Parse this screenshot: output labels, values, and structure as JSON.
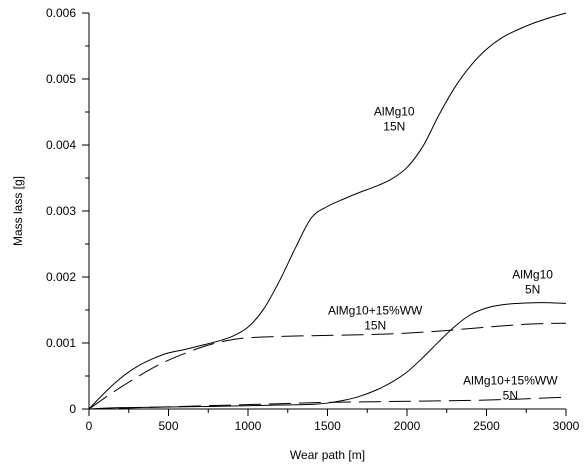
{
  "chart_data": {
    "type": "line",
    "title": "",
    "xlabel": "Wear path [m]",
    "ylabel": "Mass lass [g]",
    "xlim": [
      0,
      3000
    ],
    "ylim": [
      0,
      0.006
    ],
    "x_ticks": [
      0,
      500,
      1000,
      1500,
      2000,
      2500,
      3000
    ],
    "x_tick_labels": [
      "0",
      "500",
      "1000",
      "1500",
      "2000",
      "2500",
      "3000"
    ],
    "y_ticks": [
      0,
      0.001,
      0.002,
      0.003,
      0.004,
      0.005,
      0.006
    ],
    "y_tick_labels": [
      "0",
      "0.001",
      "0.002",
      "0.003",
      "0.004",
      "0.005",
      "0.006"
    ],
    "grid": false,
    "legend": "none",
    "series": [
      {
        "style": "solid",
        "x": [
          0,
          100,
          200,
          300,
          400,
          500,
          600,
          700,
          800,
          900,
          1000,
          1100,
          1200,
          1300,
          1400,
          1500,
          1600,
          1700,
          1800,
          1900,
          2000,
          2100,
          2200,
          2300,
          2400,
          2500,
          2600,
          2700,
          2800,
          2900,
          3000
        ],
        "y": [
          0,
          0.00025,
          0.00047,
          0.00064,
          0.00076,
          0.00085,
          0.0009,
          0.00096,
          0.00102,
          0.0011,
          0.00124,
          0.00152,
          0.00195,
          0.00245,
          0.0029,
          0.00307,
          0.00318,
          0.00328,
          0.00337,
          0.00348,
          0.00366,
          0.00398,
          0.00445,
          0.00487,
          0.0052,
          0.00545,
          0.00563,
          0.00575,
          0.00585,
          0.00593,
          0.006
        ]
      },
      {
        "style": "solid",
        "x": [
          0,
          200,
          500,
          800,
          1000,
          1200,
          1400,
          1500,
          1600,
          1700,
          1800,
          1900,
          2000,
          2100,
          2200,
          2300,
          2400,
          2500,
          2600,
          2700,
          2800,
          2900,
          3000
        ],
        "y": [
          0,
          2e-05,
          3e-05,
          4e-05,
          5e-05,
          6e-05,
          7e-05,
          9e-05,
          0.00013,
          0.00019,
          0.00028,
          0.0004,
          0.00056,
          0.00078,
          0.00102,
          0.00125,
          0.00143,
          0.00153,
          0.00158,
          0.0016,
          0.00161,
          0.00161,
          0.0016
        ]
      },
      {
        "style": "dashed",
        "x": [
          0,
          100,
          200,
          300,
          400,
          500,
          600,
          700,
          800,
          900,
          1000,
          1200,
          1400,
          1600,
          1800,
          2000,
          2200,
          2400,
          2600,
          2800,
          3000
        ],
        "y": [
          0,
          0.00017,
          0.00033,
          0.00048,
          0.00062,
          0.00074,
          0.00084,
          0.00093,
          0.001,
          0.00105,
          0.00108,
          0.0011,
          0.00111,
          0.00112,
          0.00113,
          0.00115,
          0.00118,
          0.00122,
          0.00126,
          0.00129,
          0.0013
        ]
      },
      {
        "style": "dashed",
        "x": [
          0,
          300,
          600,
          900,
          1200,
          1500,
          1800,
          2100,
          2400,
          2700,
          3000
        ],
        "y": [
          0,
          2e-05,
          4e-05,
          6e-05,
          8e-05,
          0.0001,
          0.00011,
          0.00012,
          0.00013,
          0.00015,
          0.00018
        ]
      }
    ],
    "annotations": [
      {
        "lines": [
          "AlMg10",
          "15N"
        ],
        "x": 1920,
        "y": 0.00445
      },
      {
        "lines": [
          "AlMg10+15%WW",
          "15N"
        ],
        "x": 1800,
        "y": 0.00143
      },
      {
        "lines": [
          "AlMg10",
          "5N"
        ],
        "x": 2790,
        "y": 0.00198
      },
      {
        "lines": [
          "AlMg10+15%WW",
          "5N"
        ],
        "x": 2650,
        "y": 0.00037
      }
    ]
  }
}
